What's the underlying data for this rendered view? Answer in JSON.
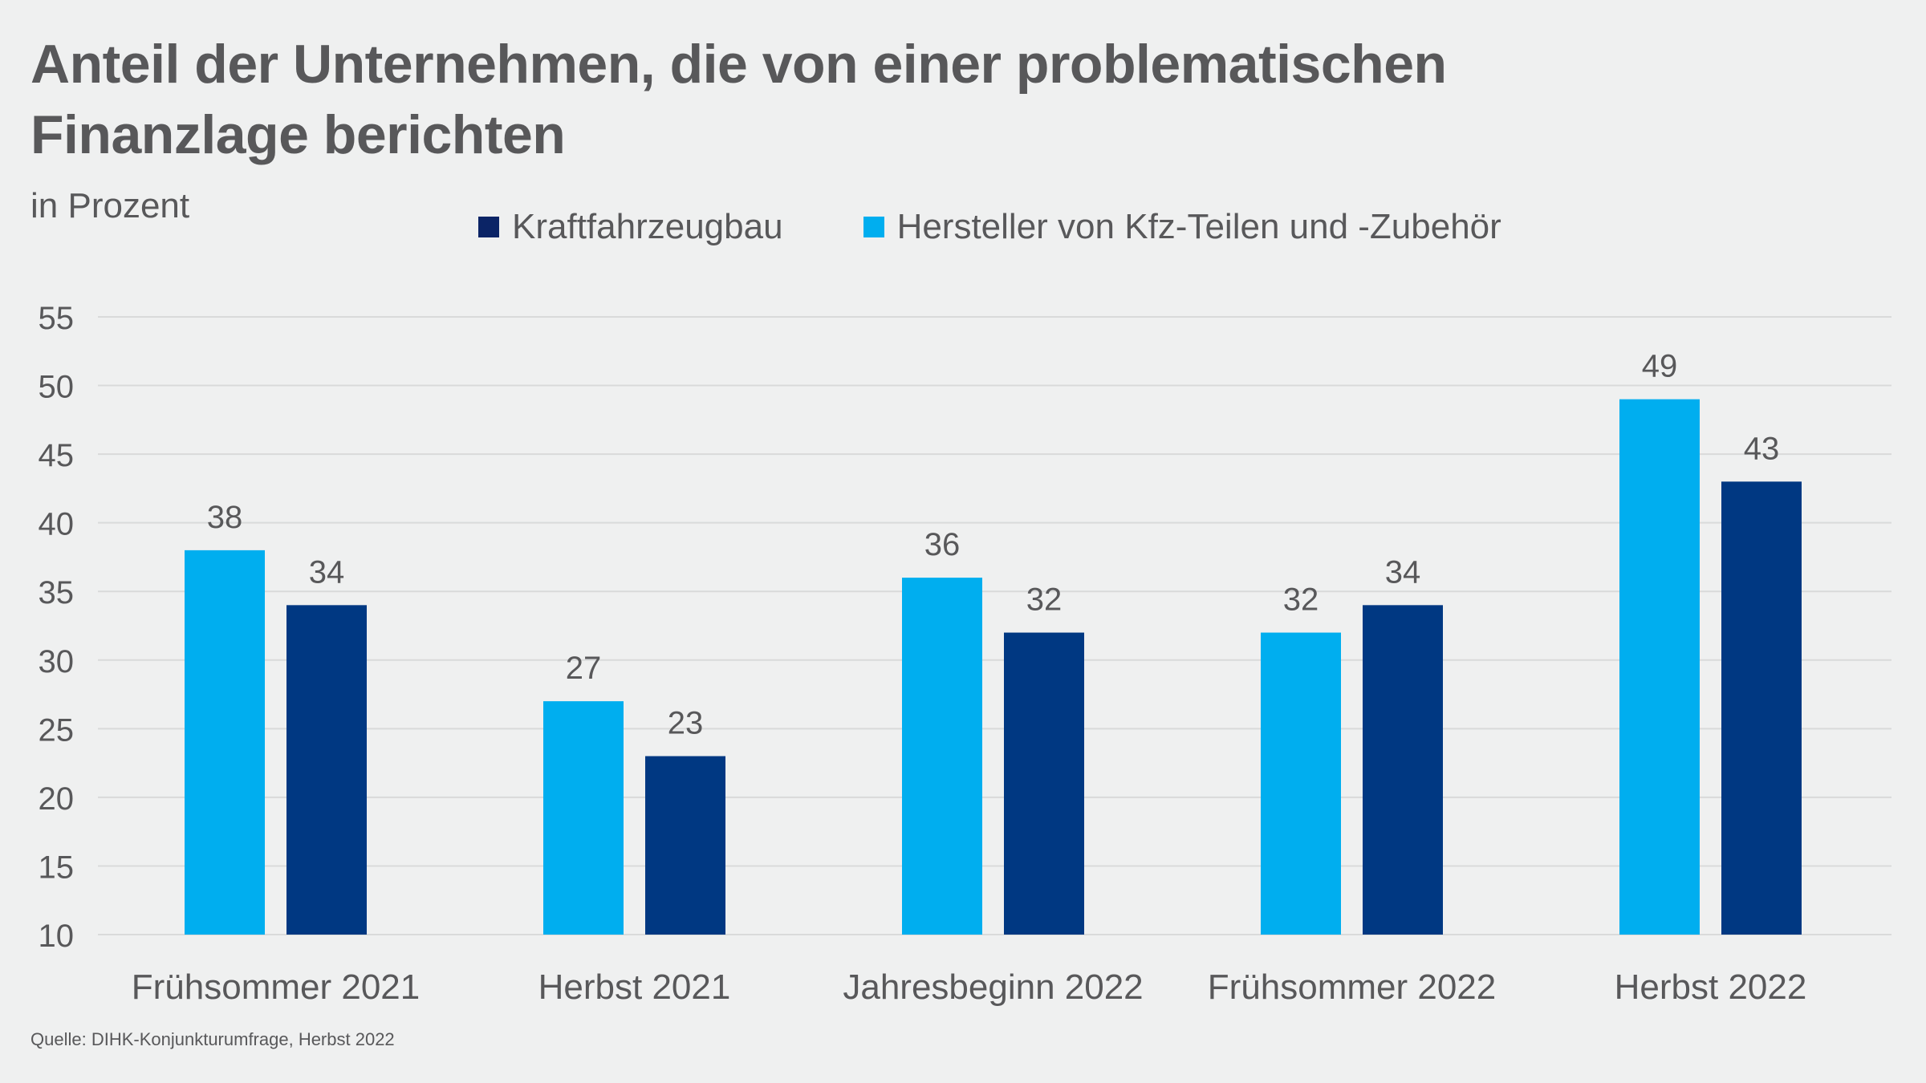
{
  "title_line1": "Anteil der Unternehmen, die von einer problematischen",
  "title_line2": "Finanzlage berichten",
  "subtitle": "in Prozent",
  "source": "Quelle: DIHK-Konjunkturumfrage, Herbst 2022",
  "legend": [
    {
      "label": "Kraftfahrzeugbau",
      "color": "#0b2466"
    },
    {
      "label": "Hersteller von Kfz-Teilen und -Zubehör",
      "color": "#00aeef"
    }
  ],
  "chart_data": {
    "type": "bar",
    "title": "Anteil der Unternehmen, die von einer problematischen Finanzlage berichten",
    "subtitle": "in Prozent",
    "xlabel": "",
    "ylabel": "in Prozent",
    "ylim": [
      10,
      55
    ],
    "yticks": [
      10,
      15,
      20,
      25,
      30,
      35,
      40,
      45,
      50,
      55
    ],
    "grid": true,
    "legend_position": "top-center",
    "categories": [
      "Frühsommer 2021",
      "Herbst 2021",
      "Jahresbeginn 2022",
      "Frühsommer 2022",
      "Herbst 2022"
    ],
    "series": [
      {
        "name": "Hersteller von Kfz-Teilen und -Zubehör",
        "color": "#00aeef",
        "values": [
          38,
          27,
          36,
          32,
          49
        ]
      },
      {
        "name": "Kraftfahrzeugbau",
        "color": "#003882",
        "values": [
          34,
          23,
          32,
          34,
          43
        ]
      }
    ],
    "source": "Quelle: DIHK-Konjunkturumfrage, Herbst 2022"
  }
}
